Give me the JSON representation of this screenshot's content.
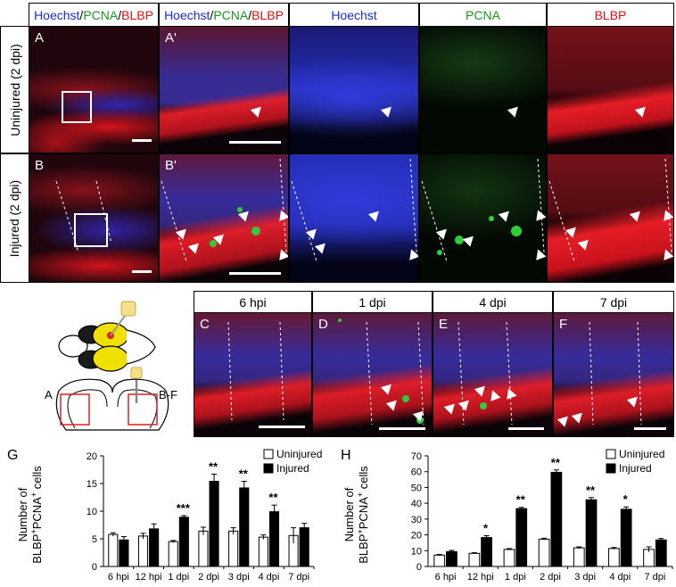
{
  "header": {
    "merge_a": {
      "hoechst": "Hoechst",
      "sep1": "/",
      "pcna": "PCNA",
      "sep2": "/",
      "blbp": "BLBP"
    },
    "merge_b": {
      "hoechst": "Hoechst",
      "sep1": "/",
      "pcna": "PCNA",
      "sep2": "/",
      "blbp": "BLBP"
    },
    "hoechst": "Hoechst",
    "pcna": "PCNA",
    "blbp": "BLBP"
  },
  "rows": {
    "uninjured": "Uninjured (2 dpi)",
    "injured": "Injured (2 dpi)"
  },
  "panel_letters": {
    "A": "A",
    "A_prime": "A'",
    "B": "B",
    "B_prime": "B'",
    "C": "C",
    "D": "D",
    "E": "E",
    "F": "F",
    "G": "G",
    "H": "H"
  },
  "timecourse_headers": [
    "6 hpi",
    "1 dpi",
    "4 dpi",
    "7 dpi"
  ],
  "schematic": {
    "label_a": "A",
    "label_bf": "B-F"
  },
  "colors": {
    "hoechst": "#1a2ad6",
    "pcna": "#1a9a1a",
    "blbp": "#e01010",
    "uninjured_bar": "#ffffff",
    "injured_bar": "#000000",
    "brain_fill": "#f0e000"
  },
  "chart_data": [
    {
      "type": "bar",
      "panel": "G",
      "ylabel_line1": "Number of",
      "ylabel_line2": "BLBP",
      "ylabel_sup1": "+",
      "ylabel_mid": "PCNA",
      "ylabel_sup2": "+",
      "ylabel_end": " cells",
      "categories": [
        "6 hpi",
        "12 hpi",
        "1 dpi",
        "2 dpi",
        "3 dpi",
        "4 dpi",
        "7 dpi"
      ],
      "series": [
        {
          "name": "Uninjured",
          "values": [
            5.8,
            5.5,
            4.5,
            6.4,
            6.4,
            5.3,
            5.6
          ],
          "errors": [
            0.3,
            0.5,
            0.2,
            0.7,
            0.6,
            0.4,
            1.4
          ]
        },
        {
          "name": "Injured",
          "values": [
            4.8,
            6.8,
            8.9,
            15.4,
            14.2,
            9.9,
            7.0
          ],
          "errors": [
            0.6,
            0.9,
            0.3,
            1.3,
            1.2,
            1.2,
            0.8
          ]
        }
      ],
      "significance": [
        "",
        "",
        "***",
        "**",
        "**",
        "**",
        ""
      ],
      "ylim": [
        0,
        20
      ],
      "yticks": [
        0,
        5,
        10,
        15,
        20
      ],
      "legend_position": "top-right"
    },
    {
      "type": "bar",
      "panel": "H",
      "ylabel_line1": "Number of",
      "ylabel_line2": "BLBP",
      "ylabel_sup1": "+",
      "ylabel_mid": "PCNA",
      "ylabel_sup2": "+",
      "ylabel_end": " cells",
      "categories": [
        "6 hpi",
        "12 hpi",
        "1 dpi",
        "2 dpi",
        "3 dpi",
        "4 dpi",
        "7 dpi"
      ],
      "series": [
        {
          "name": "Uninjured",
          "values": [
            7.2,
            8.3,
            10.8,
            17.3,
            11.8,
            11.4,
            10.8
          ],
          "errors": [
            0.4,
            0.4,
            0.5,
            0.6,
            0.6,
            0.6,
            1.6
          ]
        },
        {
          "name": "Injured",
          "values": [
            9.4,
            18.3,
            36.6,
            59.6,
            42.2,
            36.2,
            16.8
          ],
          "errors": [
            0.8,
            1.2,
            0.8,
            1.5,
            1.4,
            1.5,
            0.9
          ]
        }
      ],
      "significance": [
        "",
        "*",
        "**",
        "**",
        "**",
        "*",
        ""
      ],
      "ylim": [
        0,
        70
      ],
      "yticks": [
        0,
        10,
        20,
        30,
        40,
        50,
        60,
        70
      ],
      "legend_position": "top-right"
    }
  ]
}
